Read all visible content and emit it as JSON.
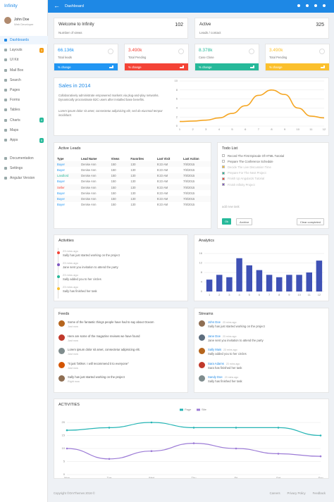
{
  "sidebar": {
    "brand": "Infinity",
    "user": {
      "name": "John Doe",
      "role": "Web Developer"
    },
    "menu": [
      {
        "label": "Dashboards",
        "active": true
      },
      {
        "label": "Layouts",
        "badge": 3,
        "badge_color": "#f39c12"
      },
      {
        "label": "UI Kit"
      },
      {
        "label": "Mail Box"
      },
      {
        "label": "Search"
      },
      {
        "label": "Pages"
      },
      {
        "label": "Forms"
      },
      {
        "label": "Tables"
      },
      {
        "label": "Charts",
        "badge": 4,
        "badge_color": "#26b99a"
      },
      {
        "label": "Maps"
      },
      {
        "label": "Apps",
        "badge": 5,
        "badge_color": "#26b99a"
      }
    ],
    "extra": [
      "Documentation",
      "Settings",
      "Angular Version"
    ]
  },
  "topbar": {
    "title": "Dashboard"
  },
  "summary": [
    {
      "title": "Welcome to Infinity",
      "value": 102,
      "caption": "Number of views"
    },
    {
      "title": "Active",
      "value": 325,
      "caption": "Leads / contact"
    }
  ],
  "stats": [
    {
      "value": "66.136k",
      "label": "Total leads",
      "footer": "% change",
      "color": "#2196f3"
    },
    {
      "value": "3.490k",
      "label": "Total Pending",
      "footer": "% change",
      "color": "#f44336"
    },
    {
      "value": "8.378k",
      "label": "Case Close",
      "footer": "% change",
      "color": "#26b99a"
    },
    {
      "value": "3.490k",
      "label": "Total Pending",
      "footer": "% change",
      "color": "#fbc02d"
    }
  ],
  "sales": {
    "title": "Sales in 2014",
    "text": "Collaboratively administrate empowered markets via plug-and-play networks. Dynamically procrastinate B2C users after installed base benefits.",
    "text2": "Lorem ipsum dolor sit amet, consectetur adipisicing elit, sed do eiusmod tempor incididunt.",
    "chart": {
      "type": "line",
      "color": "#f5a623",
      "categories": [
        "1",
        "2",
        "3",
        "4",
        "5",
        "6",
        "7",
        "8",
        "9",
        "10",
        "11",
        "12"
      ],
      "values": [
        1,
        1.1,
        1.3,
        1.8,
        2.8,
        4.5,
        6.8,
        8,
        7,
        4,
        2.2,
        1.8
      ],
      "ylim": [
        0,
        10
      ],
      "yticks": [
        0,
        2,
        4,
        6,
        8,
        10
      ],
      "grid": true
    }
  },
  "leads": {
    "title": "Active Leads",
    "columns": [
      "Type",
      "Lead Name",
      "Views",
      "Favorites",
      "Last Visit",
      "Last Action"
    ],
    "type_colors": {
      "Buyer": "#2196f3",
      "Landlord": "#26b99a",
      "Seller": "#f44336"
    },
    "rows": [
      [
        "Buyer",
        "Denise Ann",
        150,
        130,
        "9:23 AM",
        "7/8/2015"
      ],
      [
        "Buyer",
        "Denise Ann",
        150,
        130,
        "9:23 AM",
        "7/8/2015"
      ],
      [
        "Landlord",
        "Denise Ann",
        150,
        130,
        "9:23 AM",
        "7/8/2015"
      ],
      [
        "Buyer",
        "Denise Ann",
        150,
        130,
        "9:23 AM",
        "7/8/2015"
      ],
      [
        "Seller",
        "Denise Ann",
        150,
        130,
        "9:23 AM",
        "7/8/2015"
      ],
      [
        "Buyer",
        "Denise Ann",
        150,
        130,
        "9:23 AM",
        "7/8/2015"
      ],
      [
        "Buyer",
        "Denise Ann",
        150,
        130,
        "9:23 AM",
        "7/8/2015"
      ],
      [
        "Buyer",
        "Denise Ann",
        150,
        130,
        "9:23 AM",
        "7/8/2015"
      ]
    ]
  },
  "todo": {
    "title": "Todo List",
    "items": [
      {
        "text": "Record The First Episode Of HTML Tutorial",
        "done": false
      },
      {
        "text": "Prepare The Conference Schedule",
        "done": false
      },
      {
        "text": "Decide The Live Discussion Time",
        "done": true,
        "color": "#fbc02d"
      },
      {
        "text": "Prepare For The Next Project",
        "done": true,
        "color": "#26b99a"
      },
      {
        "text": "Finish Up AngularJs Tutorial",
        "done": true,
        "color": "#f44336"
      },
      {
        "text": "Finish Infinity Project",
        "done": true,
        "color": "#7e57c2"
      }
    ],
    "placeholder": "add new task",
    "ok": "Ok",
    "archive": "Archive",
    "clear": "Clear completed"
  },
  "activities": {
    "title": "Activities",
    "items": [
      {
        "time": "23 mins ago",
        "text": "Sally has just started working on the project",
        "color": "#f44336"
      },
      {
        "time": "23 mins ago",
        "text": "Jane sent you invitation to attend the party",
        "color": "#7e57c2"
      },
      {
        "time": "23 mins ago",
        "text": "Sally added you to her circles",
        "color": "#26b99a"
      },
      {
        "time": "23 mins ago",
        "text": "Sally has finished her task",
        "color": "#fbc02d"
      }
    ]
  },
  "analytics": {
    "title": "Analytics",
    "chart": {
      "type": "bar",
      "color": "#3f51b5",
      "categories": [
        "1",
        "2",
        "3",
        "4",
        "5",
        "6",
        "7",
        "8",
        "9",
        "10",
        "11",
        "12"
      ],
      "values": [
        5,
        7,
        6,
        14,
        11,
        9,
        7,
        6,
        7,
        7,
        8,
        13
      ],
      "ylim": [
        0,
        16
      ],
      "yticks": [
        0,
        4,
        8,
        12,
        16
      ],
      "grid": true
    }
  },
  "feeds": {
    "title": "Feeds",
    "items": [
      {
        "text": "Some of the fantastic things people have had to say about Ooxom",
        "time": "Just now"
      },
      {
        "text": "Here are some of the magazine reviews we have found",
        "time": "Just now"
      },
      {
        "text": "Lorem ipsum dolor sit amet, consectetur adipisicing elit.",
        "time": "Just now"
      },
      {
        "text": "\"It just 'br0ke!. I will recommend it to everyone\"",
        "time": "Just now"
      },
      {
        "text": "Sally has just started working on the project",
        "time": "Right now"
      }
    ]
  },
  "streams": {
    "title": "Streams",
    "items": [
      {
        "name": "John Doe",
        "time": "23 mins ago",
        "text": "Sally has just started working on the project"
      },
      {
        "name": "Jane Doe",
        "time": "23 mins ago",
        "text": "Jane sent you invitation to attend the party"
      },
      {
        "name": "Sally Mais",
        "time": "23 mins ago",
        "text": "Sally added you to her circles"
      },
      {
        "name": "Sara Adams",
        "time": "23 mins ago",
        "text": "Sara has finished her task"
      },
      {
        "name": "Sandy Doe",
        "time": "23 mins ago",
        "text": "Sally has finished her task"
      }
    ]
  },
  "activity_chart": {
    "title": "ACTIVITIES",
    "chart": {
      "type": "line",
      "categories": [
        "Mon",
        "Tue",
        "Wed",
        "Thu",
        "Fri",
        "Sat",
        "Sun"
      ],
      "series": [
        {
          "name": "Page",
          "color": "#26b5b5",
          "values": [
            17,
            18,
            20,
            18,
            18,
            18,
            15
          ]
        },
        {
          "name": "Site",
          "color": "#9c7bd6",
          "values": [
            10,
            6,
            9,
            12,
            10,
            8,
            7
          ]
        }
      ],
      "ylim": [
        0,
        20
      ],
      "yticks": [
        0,
        5,
        10,
        15,
        20
      ],
      "grid": true
    }
  },
  "footer": {
    "copyright": "Copyright ©OmThemes 2016 ©",
    "links": [
      "Careers",
      "Privacy Policy",
      "Feedback"
    ]
  }
}
